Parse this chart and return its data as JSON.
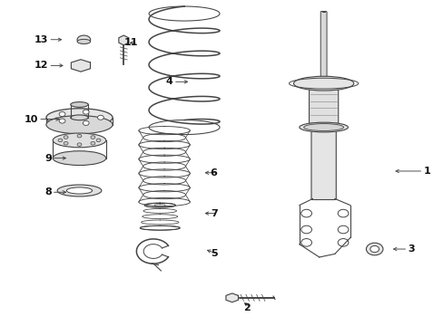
{
  "bg_color": "#ffffff",
  "line_color": "#444444",
  "text_color": "#111111",
  "fig_width": 4.89,
  "fig_height": 3.6,
  "dpi": 100,
  "label_positions": {
    "1": [
      0.955,
      0.475,
      0.885,
      0.475,
      "left"
    ],
    "2": [
      0.565,
      0.055,
      0.545,
      0.075,
      "right"
    ],
    "3": [
      0.92,
      0.235,
      0.88,
      0.235,
      "left"
    ],
    "4": [
      0.39,
      0.75,
      0.43,
      0.75,
      "right"
    ],
    "5": [
      0.49,
      0.22,
      0.46,
      0.235,
      "right"
    ],
    "6": [
      0.49,
      0.47,
      0.455,
      0.47,
      "right"
    ],
    "7": [
      0.49,
      0.345,
      0.455,
      0.345,
      "right"
    ],
    "8": [
      0.115,
      0.41,
      0.155,
      0.41,
      "right"
    ],
    "9": [
      0.115,
      0.515,
      0.155,
      0.515,
      "right"
    ],
    "10": [
      0.085,
      0.635,
      0.14,
      0.635,
      "right"
    ],
    "11": [
      0.31,
      0.87,
      0.285,
      0.87,
      "right"
    ],
    "12": [
      0.108,
      0.8,
      0.148,
      0.8,
      "right"
    ],
    "13": [
      0.108,
      0.88,
      0.145,
      0.88,
      "right"
    ]
  }
}
